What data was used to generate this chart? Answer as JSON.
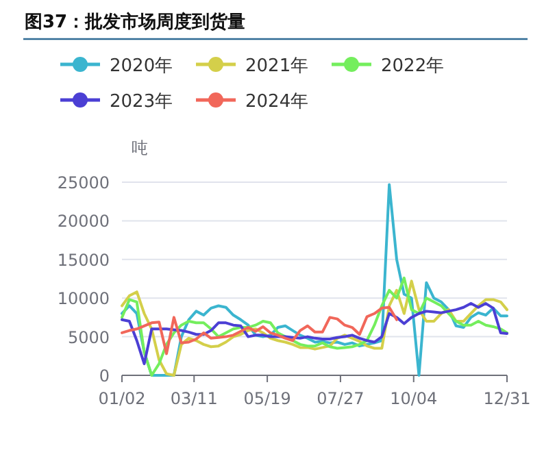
{
  "chart_data": {
    "type": "line",
    "title": "图37：批发市场周度到货量",
    "ylabel": "吨",
    "legend": "top",
    "marker": "none",
    "grid": "y",
    "x": [
      "--01-02",
      "--01-09",
      "--01-16",
      "--01-23",
      "--01-30",
      "--02-06",
      "--02-13",
      "--02-20",
      "--02-27",
      "--03-06",
      "--03-13",
      "--03-20",
      "--03-27",
      "--04-03",
      "--04-10",
      "--04-17",
      "--04-24",
      "--05-01",
      "--05-08",
      "--05-15",
      "--05-22",
      "--05-29",
      "--06-05",
      "--06-12",
      "--06-19",
      "--06-26",
      "--07-03",
      "--07-10",
      "--07-17",
      "--07-24",
      "--07-31",
      "--08-07",
      "--08-14",
      "--08-21",
      "--08-28",
      "--09-04",
      "--09-11",
      "--09-18",
      "--09-25",
      "--10-02",
      "--10-09",
      "--10-16",
      "--10-23",
      "--10-30",
      "--11-06",
      "--11-13",
      "--11-20",
      "--11-27",
      "--12-04",
      "--12-11",
      "--12-18",
      "--12-25",
      "--12-31"
    ],
    "xlim": [
      "--01-02",
      "--12-31"
    ],
    "xticks": [
      {
        "value": "--01-02",
        "label": "01/02"
      },
      {
        "value": "--03-11",
        "label": "03/11"
      },
      {
        "value": "--05-19",
        "label": "05/19"
      },
      {
        "value": "--07-27",
        "label": "07/27"
      },
      {
        "value": "--10-04",
        "label": "10/04"
      },
      {
        "value": "--12-31",
        "label": "12/31"
      }
    ],
    "ylim": [
      0,
      25000
    ],
    "yticks": [
      0,
      5000,
      10000,
      15000,
      20000,
      25000
    ],
    "series": [
      {
        "name": "2020年",
        "color": "#3bb5cf",
        "values": [
          8000,
          9000,
          8000,
          3000,
          0,
          0,
          0,
          0,
          5000,
          7200,
          8300,
          7800,
          8700,
          9000,
          8800,
          7800,
          7200,
          6500,
          5200,
          5000,
          5200,
          6200,
          6400,
          5800,
          5200,
          4800,
          4300,
          4400,
          4200,
          4300,
          4000,
          4200,
          3800,
          4000,
          4200,
          4500,
          24700,
          15000,
          10500,
          10000,
          0,
          12000,
          10000,
          9500,
          8500,
          6400,
          6200,
          7500,
          8100,
          7800,
          8700,
          7700,
          7700
        ]
      },
      {
        "name": "2021年",
        "color": "#d4cf4a",
        "values": [
          9000,
          10300,
          10800,
          8000,
          6000,
          2000,
          200,
          0,
          4000,
          4800,
          4500,
          4000,
          3700,
          3800,
          4300,
          5000,
          5300,
          5800,
          6000,
          5500,
          4800,
          4500,
          4300,
          4000,
          3600,
          3600,
          3400,
          3600,
          3800,
          4800,
          5200,
          4800,
          4400,
          3800,
          3500,
          3500,
          9000,
          11000,
          8000,
          12200,
          8500,
          7000,
          7000,
          8000,
          8500,
          7000,
          7000,
          8000,
          9000,
          9800,
          9800,
          9500,
          8500
        ]
      },
      {
        "name": "2022年",
        "color": "#74ee5d",
        "values": [
          7500,
          9800,
          9500,
          3000,
          0,
          1500,
          4000,
          5500,
          6500,
          7000,
          6800,
          6800,
          6000,
          5000,
          5500,
          6000,
          6200,
          6200,
          6500,
          7000,
          6800,
          5500,
          5000,
          4500,
          4000,
          3800,
          3800,
          4200,
          3700,
          3500,
          3600,
          3700,
          4000,
          4500,
          6500,
          9000,
          11000,
          10000,
          12600,
          8500,
          8000,
          10000,
          9500,
          9000,
          8000,
          7000,
          6500,
          6500,
          7000,
          6500,
          6300,
          6000,
          5500
        ]
      },
      {
        "name": "2023年",
        "color": "#4b3fd4",
        "values": [
          7200,
          7000,
          4500,
          1500,
          6000,
          6000,
          6000,
          5900,
          5800,
          5600,
          5300,
          5300,
          5800,
          6800,
          6800,
          6500,
          6400,
          5000,
          5200,
          5200,
          5000,
          5000,
          5000,
          4900,
          4800,
          5000,
          4800,
          4700,
          4700,
          4900,
          5000,
          5200,
          4800,
          4500,
          4300,
          5000,
          8000,
          7500,
          6700,
          7500,
          8000,
          8300,
          8200,
          8100,
          8300,
          8500,
          8800,
          9300,
          8800,
          9300,
          8700,
          5500,
          5400
        ]
      },
      {
        "name": "2024年",
        "color": "#f1675a",
        "values": [
          5500,
          5800,
          6000,
          6400,
          6800,
          6900,
          2800,
          7500,
          4200,
          4300,
          4700,
          5500,
          4800,
          4900,
          5000,
          5200,
          5700,
          6200,
          5700,
          6300,
          5500,
          5200,
          4800,
          4500,
          5800,
          6400,
          5600,
          5600,
          7500,
          7300,
          6500,
          6200,
          5300,
          7600,
          8000,
          8700,
          8800,
          7200,
          null,
          null,
          null,
          null,
          null,
          null,
          null,
          null,
          null,
          null,
          null,
          null,
          null,
          null,
          null
        ]
      }
    ]
  }
}
